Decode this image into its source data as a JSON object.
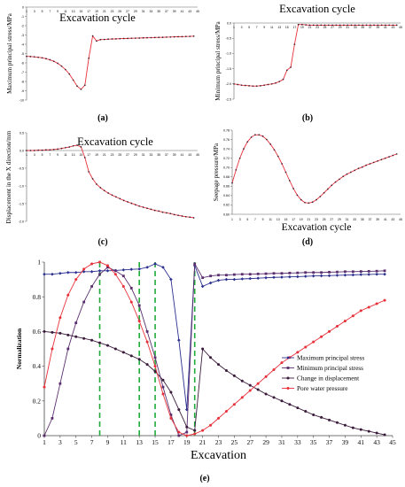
{
  "chart_data": [
    {
      "type": "line",
      "panel": "(a)",
      "title": "Excavation cycle",
      "ylabel": "Maximum principal stress/MPa",
      "xlim": [
        1,
        45
      ],
      "ylim": [
        -10,
        0
      ],
      "yticks": [
        0,
        -1,
        -2,
        -3,
        -4,
        -5,
        -6,
        -7,
        -8,
        -9,
        -10
      ],
      "color": "#e8303a",
      "x": [
        1,
        2,
        3,
        4,
        5,
        6,
        7,
        8,
        9,
        10,
        11,
        12,
        13,
        14,
        15,
        16,
        17,
        18,
        19,
        20,
        21,
        22,
        23,
        24,
        25,
        26,
        27,
        28,
        29,
        30,
        31,
        32,
        33,
        34,
        35,
        36,
        37,
        38,
        39,
        40,
        41,
        42,
        43,
        44
      ],
      "values": [
        -5.3,
        -5.32,
        -5.35,
        -5.4,
        -5.46,
        -5.55,
        -5.67,
        -5.83,
        -6.05,
        -6.35,
        -6.72,
        -7.2,
        -7.85,
        -8.5,
        -8.85,
        -8.4,
        -5.5,
        -3.1,
        -3.65,
        -3.5,
        -3.48,
        -3.45,
        -3.43,
        -3.42,
        -3.4,
        -3.38,
        -3.37,
        -3.35,
        -3.34,
        -3.33,
        -3.31,
        -3.3,
        -3.29,
        -3.27,
        -3.26,
        -3.25,
        -3.23,
        -3.22,
        -3.2,
        -3.19,
        -3.18,
        -3.16,
        -3.15,
        -3.13
      ]
    },
    {
      "type": "line",
      "panel": "(b)",
      "title": "Excavation cycle",
      "ylabel": "Minimum principal stress/MPa",
      "xlim": [
        1,
        45
      ],
      "ylim": [
        -2.5,
        0
      ],
      "yticks": [
        0,
        -0.5,
        -1,
        -1.5,
        -2,
        -2.5
      ],
      "color": "#e8303a",
      "x": [
        1,
        2,
        3,
        4,
        5,
        6,
        7,
        8,
        9,
        10,
        11,
        12,
        13,
        14,
        15,
        16,
        17,
        18,
        19,
        20,
        21,
        22,
        23,
        24,
        25,
        26,
        27,
        28,
        29,
        30,
        31,
        32,
        33,
        34,
        35,
        36,
        37,
        38,
        39,
        40,
        41,
        42,
        43,
        44
      ],
      "values": [
        -2.0,
        -2.02,
        -2.04,
        -2.05,
        -2.06,
        -2.07,
        -2.07,
        -2.06,
        -2.04,
        -2.02,
        -2.0,
        -1.97,
        -1.92,
        -1.85,
        -1.55,
        -1.45,
        -0.7,
        -0.05,
        -0.05,
        -0.06,
        -0.07,
        -0.07,
        -0.07,
        -0.07,
        -0.07,
        -0.07,
        -0.07,
        -0.07,
        -0.07,
        -0.07,
        -0.07,
        -0.07,
        -0.07,
        -0.07,
        -0.07,
        -0.07,
        -0.07,
        -0.07,
        -0.07,
        -0.07,
        -0.07,
        -0.07,
        -0.07,
        -0.07
      ]
    },
    {
      "type": "line",
      "panel": "(c)",
      "title": "Excavation cycle",
      "ylabel": "Displacement in the X direction/mm",
      "xlim": [
        1,
        45
      ],
      "ylim": [
        -2,
        0.5
      ],
      "yticks": [
        0.5,
        0,
        -0.5,
        -1,
        -1.5,
        -2
      ],
      "color": "#e8303a",
      "x": [
        1,
        2,
        3,
        4,
        5,
        6,
        7,
        8,
        9,
        10,
        11,
        12,
        13,
        14,
        15,
        16,
        17,
        18,
        19,
        20,
        21,
        22,
        23,
        24,
        25,
        26,
        27,
        28,
        29,
        30,
        31,
        32,
        33,
        34,
        35,
        36,
        37,
        38,
        39,
        40,
        41,
        42,
        43,
        44
      ],
      "values": [
        0.0,
        0.0,
        0.0,
        0.01,
        0.01,
        0.02,
        0.02,
        0.03,
        0.04,
        0.06,
        0.08,
        0.1,
        0.13,
        0.15,
        0.1,
        -0.2,
        -0.6,
        -0.8,
        -0.95,
        -1.05,
        -1.13,
        -1.2,
        -1.26,
        -1.31,
        -1.36,
        -1.41,
        -1.45,
        -1.49,
        -1.53,
        -1.57,
        -1.6,
        -1.63,
        -1.66,
        -1.69,
        -1.71,
        -1.74,
        -1.76,
        -1.78,
        -1.81,
        -1.83,
        -1.85,
        -1.87,
        -1.88,
        -1.9
      ]
    },
    {
      "type": "line",
      "panel": "(d)",
      "xlabel": "Excavation cycle",
      "ylabel": "Seepage pressure/MPa",
      "xlim": [
        1,
        45
      ],
      "ylim": [
        0.6,
        0.78
      ],
      "yticks": [
        0.78,
        0.76,
        0.74,
        0.72,
        0.7,
        0.68,
        0.66,
        0.64,
        0.62,
        0.6
      ],
      "color": "#e8303a",
      "x": [
        1,
        2,
        3,
        4,
        5,
        6,
        7,
        8,
        9,
        10,
        11,
        12,
        13,
        14,
        15,
        16,
        17,
        18,
        19,
        20,
        21,
        22,
        23,
        24,
        25,
        26,
        27,
        28,
        29,
        30,
        31,
        32,
        33,
        34,
        35,
        36,
        37,
        38,
        39,
        40,
        41,
        42,
        43,
        44
      ],
      "values": [
        0.667,
        0.695,
        0.72,
        0.74,
        0.755,
        0.765,
        0.77,
        0.77,
        0.767,
        0.76,
        0.75,
        0.738,
        0.724,
        0.708,
        0.69,
        0.672,
        0.655,
        0.641,
        0.631,
        0.625,
        0.624,
        0.626,
        0.631,
        0.638,
        0.646,
        0.654,
        0.662,
        0.669,
        0.675,
        0.681,
        0.686,
        0.69,
        0.694,
        0.698,
        0.701,
        0.705,
        0.708,
        0.711,
        0.714,
        0.717,
        0.72,
        0.723,
        0.726,
        0.729
      ]
    },
    {
      "type": "line",
      "panel": "(e)",
      "xlabel": "Excavation",
      "ylabel": "Normalization",
      "xlim": [
        1,
        45
      ],
      "ylim": [
        0,
        1
      ],
      "xticks": [
        1,
        3,
        5,
        7,
        9,
        11,
        13,
        15,
        17,
        19,
        21,
        23,
        25,
        27,
        29,
        31,
        33,
        35,
        37,
        39,
        41,
        43,
        45
      ],
      "yticks": [
        0,
        0.2,
        0.4,
        0.6,
        0.8,
        1
      ],
      "grid": false,
      "legend": "center-right",
      "vlines": [
        8,
        13,
        15,
        20
      ],
      "vline_color": "#1faa3a",
      "x": [
        1,
        2,
        3,
        4,
        5,
        6,
        7,
        8,
        9,
        10,
        11,
        12,
        13,
        14,
        15,
        16,
        17,
        18,
        19,
        20,
        21,
        22,
        23,
        24,
        25,
        26,
        27,
        28,
        29,
        30,
        31,
        32,
        33,
        34,
        35,
        36,
        37,
        38,
        39,
        40,
        41,
        42,
        43,
        44
      ],
      "series": [
        {
          "name": "Maximum principal stress",
          "color": "#2b2f8f",
          "marker": "diamond",
          "values": [
            0.93,
            0.93,
            0.935,
            0.94,
            0.94,
            0.945,
            0.945,
            0.95,
            0.95,
            0.952,
            0.955,
            0.958,
            0.96,
            0.97,
            0.99,
            0.97,
            0.9,
            0.55,
            0.15,
            0.98,
            0.86,
            0.88,
            0.895,
            0.9,
            0.9,
            0.903,
            0.905,
            0.907,
            0.91,
            0.912,
            0.913,
            0.915,
            0.916,
            0.918,
            0.92,
            0.921,
            0.922,
            0.924,
            0.925,
            0.926,
            0.928,
            0.929,
            0.93,
            0.93
          ]
        },
        {
          "name": "Minimum principal stress",
          "color": "#5a2e6e",
          "marker": "square",
          "values": [
            0.0,
            0.1,
            0.3,
            0.5,
            0.65,
            0.77,
            0.86,
            0.93,
            0.97,
            0.95,
            0.92,
            0.85,
            0.75,
            0.6,
            0.45,
            0.28,
            0.12,
            0.0,
            0.02,
            0.99,
            0.91,
            0.92,
            0.925,
            0.925,
            0.928,
            0.93,
            0.93,
            0.932,
            0.933,
            0.935,
            0.935,
            0.937,
            0.938,
            0.94,
            0.94,
            0.94,
            0.942,
            0.943,
            0.945,
            0.945,
            0.946,
            0.947,
            0.948,
            0.95
          ]
        },
        {
          "name": "Change in displacement",
          "color": "#3a1a3a",
          "marker": "circle",
          "values": [
            0.6,
            0.595,
            0.59,
            0.58,
            0.57,
            0.56,
            0.55,
            0.535,
            0.52,
            0.5,
            0.48,
            0.46,
            0.44,
            0.41,
            0.37,
            0.32,
            0.25,
            0.15,
            0.05,
            0.03,
            0.5,
            0.45,
            0.41,
            0.375,
            0.345,
            0.315,
            0.29,
            0.265,
            0.24,
            0.22,
            0.2,
            0.18,
            0.16,
            0.14,
            0.12,
            0.105,
            0.09,
            0.075,
            0.06,
            0.045,
            0.035,
            0.025,
            0.015,
            0.005
          ]
        },
        {
          "name": "Pore water pressure",
          "color": "#e8303a",
          "marker": "circle",
          "values": [
            0.28,
            0.5,
            0.68,
            0.81,
            0.9,
            0.96,
            0.99,
            1.0,
            0.98,
            0.93,
            0.86,
            0.77,
            0.66,
            0.54,
            0.4,
            0.24,
            0.1,
            0.02,
            0.0,
            0.01,
            0.03,
            0.06,
            0.1,
            0.14,
            0.18,
            0.22,
            0.26,
            0.3,
            0.34,
            0.38,
            0.42,
            0.45,
            0.48,
            0.51,
            0.54,
            0.57,
            0.6,
            0.63,
            0.66,
            0.69,
            0.72,
            0.74,
            0.76,
            0.78
          ]
        }
      ]
    }
  ],
  "labels": {
    "a": "(a)",
    "b": "(b)",
    "c": "(c)",
    "d": "(d)",
    "e": "(e)"
  }
}
